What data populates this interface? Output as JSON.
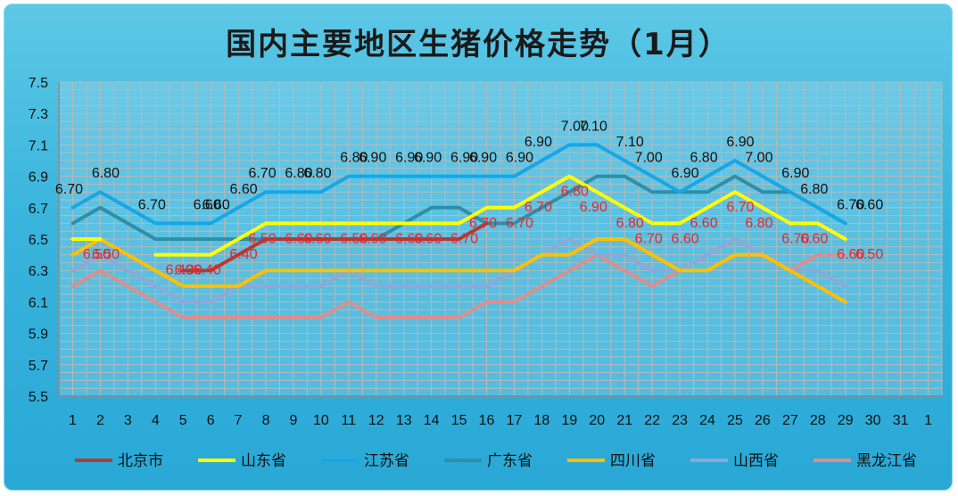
{
  "chart_data": {
    "type": "line",
    "title": "国内主要地区生猪价格走势（1月）",
    "xlabel": "",
    "ylabel": "",
    "categories": [
      "1",
      "2",
      "3",
      "4",
      "5",
      "6",
      "7",
      "8",
      "9",
      "10",
      "11",
      "12",
      "13",
      "14",
      "15",
      "16",
      "17",
      "18",
      "19",
      "20",
      "21",
      "22",
      "23",
      "24",
      "25",
      "26",
      "27",
      "28",
      "29",
      "30",
      "31",
      "1"
    ],
    "yticks": [
      "5.5",
      "5.7",
      "5.9",
      "6.1",
      "6.3",
      "6.5",
      "6.7",
      "6.9",
      "7.1",
      "7.3",
      "7.5"
    ],
    "ylim": [
      5.5,
      7.5
    ],
    "grid": true,
    "legend_position": "bottom",
    "series": [
      {
        "name": "北京市",
        "color": "#b23a36",
        "values": [
          null,
          null,
          null,
          null,
          6.3,
          6.3,
          6.4,
          6.5,
          6.5,
          6.5,
          6.5,
          6.5,
          6.5,
          6.5,
          6.5,
          6.6,
          null,
          null,
          null,
          null,
          null,
          null,
          null,
          null,
          null,
          null,
          null,
          null,
          null,
          null,
          null,
          null
        ]
      },
      {
        "name": "山东省",
        "color": "#ffff00",
        "values": [
          6.5,
          6.5,
          null,
          6.4,
          6.4,
          6.4,
          6.5,
          6.6,
          6.6,
          6.6,
          6.6,
          6.6,
          6.6,
          6.6,
          6.6,
          6.7,
          6.7,
          6.8,
          6.9,
          6.8,
          6.7,
          6.6,
          6.6,
          6.7,
          6.8,
          6.7,
          6.6,
          6.6,
          6.5,
          null,
          null,
          null
        ]
      },
      {
        "name": "江苏省",
        "color": "#17a7e6",
        "values": [
          6.7,
          6.8,
          6.7,
          6.6,
          6.6,
          6.6,
          6.7,
          6.8,
          6.8,
          6.8,
          6.9,
          6.9,
          6.9,
          6.9,
          6.9,
          6.9,
          6.9,
          7.0,
          7.1,
          7.1,
          7.0,
          6.9,
          6.8,
          6.9,
          7.0,
          6.9,
          6.8,
          6.7,
          6.6,
          null,
          null,
          null
        ]
      },
      {
        "name": "广东省",
        "color": "#2f8fa6",
        "values": [
          6.6,
          6.7,
          6.6,
          6.5,
          6.5,
          6.5,
          6.5,
          6.5,
          6.5,
          6.5,
          6.5,
          6.5,
          6.6,
          6.7,
          6.7,
          6.6,
          6.6,
          6.7,
          6.8,
          6.9,
          6.9,
          6.8,
          6.8,
          6.8,
          6.9,
          6.8,
          6.8,
          6.7,
          6.6,
          null,
          null,
          null
        ]
      },
      {
        "name": "四川省",
        "color": "#ffc000",
        "values": [
          6.4,
          6.5,
          6.4,
          6.3,
          6.2,
          6.2,
          6.2,
          6.3,
          6.3,
          6.3,
          6.3,
          6.3,
          6.3,
          6.3,
          6.3,
          6.3,
          6.3,
          6.4,
          6.4,
          6.5,
          6.5,
          6.4,
          6.3,
          6.3,
          6.4,
          6.4,
          6.3,
          6.2,
          6.1,
          null,
          null,
          null
        ]
      },
      {
        "name": "山西省",
        "color": "#8ea8d8",
        "values": [
          6.3,
          6.4,
          6.3,
          6.2,
          6.1,
          6.1,
          6.2,
          6.2,
          6.2,
          6.2,
          6.3,
          6.2,
          6.2,
          6.2,
          6.2,
          6.2,
          6.3,
          6.4,
          6.5,
          6.4,
          6.4,
          6.3,
          6.3,
          6.4,
          6.5,
          6.4,
          6.3,
          6.3,
          6.2,
          null,
          null,
          null
        ]
      },
      {
        "name": "黑龙江省",
        "color": "#d9908f",
        "values": [
          6.2,
          6.3,
          6.2,
          6.1,
          6.0,
          6.0,
          6.0,
          6.0,
          6.0,
          6.0,
          6.1,
          6.0,
          6.0,
          6.0,
          6.0,
          6.1,
          6.1,
          6.2,
          6.3,
          6.4,
          6.3,
          6.2,
          6.3,
          6.4,
          6.5,
          6.4,
          6.3,
          6.4,
          6.4,
          null,
          null,
          null
        ]
      }
    ],
    "annotations_black": [
      {
        "x": "1",
        "text": "6.70"
      },
      {
        "x": "2",
        "text": "6.80"
      },
      {
        "x": "4",
        "text": "6.70"
      },
      {
        "x": "6",
        "text": "6.60"
      },
      {
        "x": "6",
        "text": "6.60"
      },
      {
        "x": "7",
        "text": "6.60"
      },
      {
        "x": "8",
        "text": "6.70"
      },
      {
        "x": "9",
        "text": "6.80"
      },
      {
        "x": "10",
        "text": "6.80"
      },
      {
        "x": "11",
        "text": "6.80"
      },
      {
        "x": "12",
        "text": "6.90"
      },
      {
        "x": "13",
        "text": "6.90"
      },
      {
        "x": "14",
        "text": "6.90"
      },
      {
        "x": "15",
        "text": "6.90"
      },
      {
        "x": "16",
        "text": "6.90"
      },
      {
        "x": "17",
        "text": "6.90"
      },
      {
        "x": "18",
        "text": "6.90"
      },
      {
        "x": "19",
        "text": "7.00"
      },
      {
        "x": "20",
        "text": "7.10"
      },
      {
        "x": "21",
        "text": "7.10"
      },
      {
        "x": "22",
        "text": "7.00"
      },
      {
        "x": "23",
        "text": "6.90"
      },
      {
        "x": "24",
        "text": "6.80"
      },
      {
        "x": "25",
        "text": "6.90"
      },
      {
        "x": "26",
        "text": "7.00"
      },
      {
        "x": "27",
        "text": "6.90"
      },
      {
        "x": "28",
        "text": "6.80"
      },
      {
        "x": "29",
        "text": "6.70"
      },
      {
        "x": "30",
        "text": "6.60"
      }
    ],
    "annotations_red": [
      {
        "x": "2",
        "text": "6.50"
      },
      {
        "x": "2",
        "text": "6.50"
      },
      {
        "x": "5",
        "text": "6.40"
      },
      {
        "x": "5",
        "text": "6.30"
      },
      {
        "x": "6",
        "text": "6.40"
      },
      {
        "x": "7",
        "text": "6.40"
      },
      {
        "x": "8",
        "text": "6.50"
      },
      {
        "x": "9",
        "text": "6.60"
      },
      {
        "x": "10",
        "text": "6.60"
      },
      {
        "x": "11",
        "text": "6.50"
      },
      {
        "x": "12",
        "text": "6.60"
      },
      {
        "x": "13",
        "text": "6.60"
      },
      {
        "x": "14",
        "text": "6.60"
      },
      {
        "x": "15",
        "text": "6.70"
      },
      {
        "x": "16",
        "text": "6.70"
      },
      {
        "x": "17",
        "text": "6.70"
      },
      {
        "x": "18",
        "text": "6.70"
      },
      {
        "x": "19",
        "text": "6.80"
      },
      {
        "x": "20",
        "text": "6.90"
      },
      {
        "x": "21",
        "text": "6.80"
      },
      {
        "x": "22",
        "text": "6.70"
      },
      {
        "x": "23",
        "text": "6.60"
      },
      {
        "x": "24",
        "text": "6.60"
      },
      {
        "x": "25",
        "text": "6.70"
      },
      {
        "x": "26",
        "text": "6.80"
      },
      {
        "x": "27",
        "text": "6.70"
      },
      {
        "x": "28",
        "text": "6.60"
      },
      {
        "x": "29",
        "text": "6.60"
      },
      {
        "x": "30",
        "text": "6.50"
      }
    ]
  }
}
